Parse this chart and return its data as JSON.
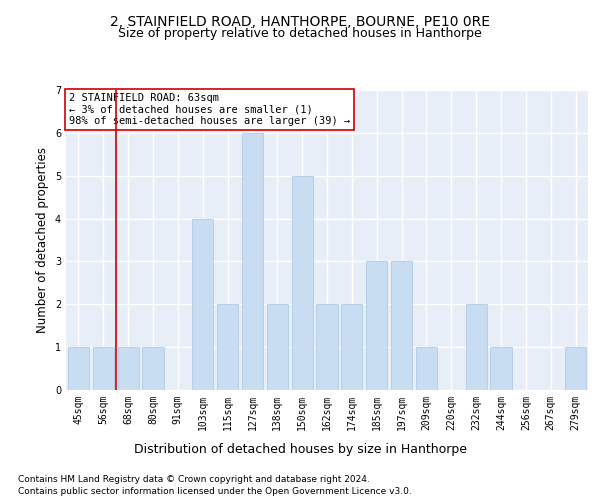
{
  "title": "2, STAINFIELD ROAD, HANTHORPE, BOURNE, PE10 0RE",
  "subtitle": "Size of property relative to detached houses in Hanthorpe",
  "xlabel_bottom": "Distribution of detached houses by size in Hanthorpe",
  "ylabel": "Number of detached properties",
  "categories": [
    "45sqm",
    "56sqm",
    "68sqm",
    "80sqm",
    "91sqm",
    "103sqm",
    "115sqm",
    "127sqm",
    "138sqm",
    "150sqm",
    "162sqm",
    "174sqm",
    "185sqm",
    "197sqm",
    "209sqm",
    "220sqm",
    "232sqm",
    "244sqm",
    "256sqm",
    "267sqm",
    "279sqm"
  ],
  "values": [
    1,
    1,
    1,
    1,
    0,
    4,
    2,
    6,
    2,
    5,
    2,
    2,
    3,
    3,
    1,
    0,
    2,
    1,
    0,
    0,
    1
  ],
  "bar_color": "#c9ddf2",
  "bar_edge_color": "#a8c4e0",
  "vline_x": 1.5,
  "vline_color": "#cc0000",
  "annotation_text": "2 STAINFIELD ROAD: 63sqm\n← 3% of detached houses are smaller (1)\n98% of semi-detached houses are larger (39) →",
  "annotation_box_color": "white",
  "annotation_box_edge_color": "#cc0000",
  "ylim": [
    0,
    7
  ],
  "yticks": [
    0,
    1,
    2,
    3,
    4,
    5,
    6,
    7
  ],
  "background_color": "#e8eef8",
  "grid_color": "white",
  "footer_line1": "Contains HM Land Registry data © Crown copyright and database right 2024.",
  "footer_line2": "Contains public sector information licensed under the Open Government Licence v3.0.",
  "title_fontsize": 10,
  "subtitle_fontsize": 9,
  "tick_fontsize": 7,
  "ylabel_fontsize": 8.5,
  "annotation_fontsize": 7.5,
  "footer_fontsize": 6.5,
  "xlabel_bottom_fontsize": 9
}
